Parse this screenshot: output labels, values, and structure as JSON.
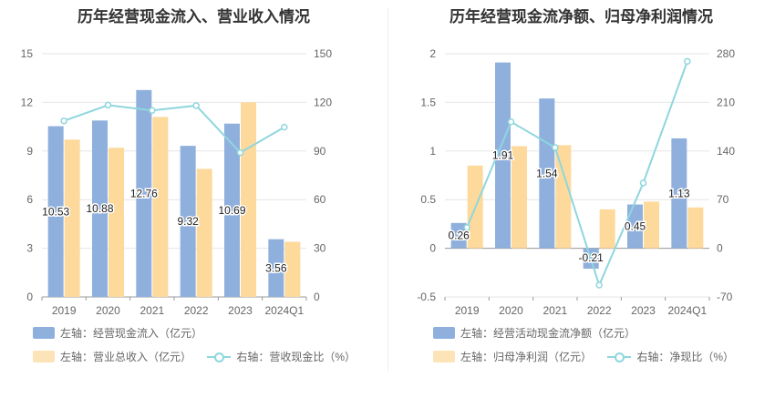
{
  "colors": {
    "bar1": "#8fb0dd",
    "bar2": "#fdd99c",
    "line": "#8fd6de",
    "axis_text": "#666666",
    "grid": "#e6e6e6"
  },
  "chart_data": [
    {
      "type": "bar",
      "title": "历年经营现金流入、营业收入情况",
      "categories": [
        "2019",
        "2020",
        "2021",
        "2022",
        "2023",
        "2024Q1"
      ],
      "series": [
        {
          "name": "左轴：经营现金流入（亿元）",
          "axis": "left",
          "kind": "bar",
          "values": [
            10.53,
            10.88,
            12.76,
            9.32,
            10.69,
            3.56
          ],
          "labels": [
            "10.53",
            "10.88",
            "12.76",
            "9.32",
            "10.69",
            "3.56"
          ]
        },
        {
          "name": "左轴：营业总收入（亿元）",
          "axis": "left",
          "kind": "bar",
          "values": [
            9.7,
            9.2,
            11.1,
            7.9,
            12.0,
            3.4
          ]
        },
        {
          "name": "右轴：营收现金比（%）",
          "axis": "right",
          "kind": "line",
          "values": [
            108.6,
            118.3,
            115.0,
            118.0,
            89.0,
            104.7
          ]
        }
      ],
      "left_axis": {
        "min": 0,
        "max": 15,
        "ticks": [
          "0",
          "3",
          "6",
          "9",
          "12",
          "15"
        ]
      },
      "right_axis": {
        "min": 0,
        "max": 150,
        "ticks": [
          "0",
          "30",
          "60",
          "90",
          "120",
          "150"
        ]
      }
    },
    {
      "type": "bar",
      "title": "历年经营现金流净额、归母净利润情况",
      "categories": [
        "2019",
        "2020",
        "2021",
        "2022",
        "2023",
        "2024Q1"
      ],
      "series": [
        {
          "name": "左轴：经营活动现金流净额（亿元）",
          "axis": "left",
          "kind": "bar",
          "values": [
            0.26,
            1.91,
            1.54,
            -0.21,
            0.45,
            1.13
          ],
          "labels": [
            "0.26",
            "1.91",
            "1.54",
            "-0.21",
            "0.45",
            "1.13"
          ]
        },
        {
          "name": "左轴：归母净利润（亿元）",
          "axis": "left",
          "kind": "bar",
          "values": [
            0.85,
            1.05,
            1.06,
            0.4,
            0.48,
            0.42
          ]
        },
        {
          "name": "右轴：净现比（%）",
          "axis": "right",
          "kind": "line",
          "values": [
            30,
            182,
            145,
            -53,
            94,
            269
          ]
        }
      ],
      "left_axis": {
        "min": -0.5,
        "max": 2,
        "ticks": [
          "-0.5",
          "0",
          "0.5",
          "1",
          "1.5",
          "2"
        ]
      },
      "right_axis": {
        "min": -70,
        "max": 280,
        "ticks": [
          "-70",
          "0",
          "70",
          "140",
          "210",
          "280"
        ]
      }
    }
  ]
}
